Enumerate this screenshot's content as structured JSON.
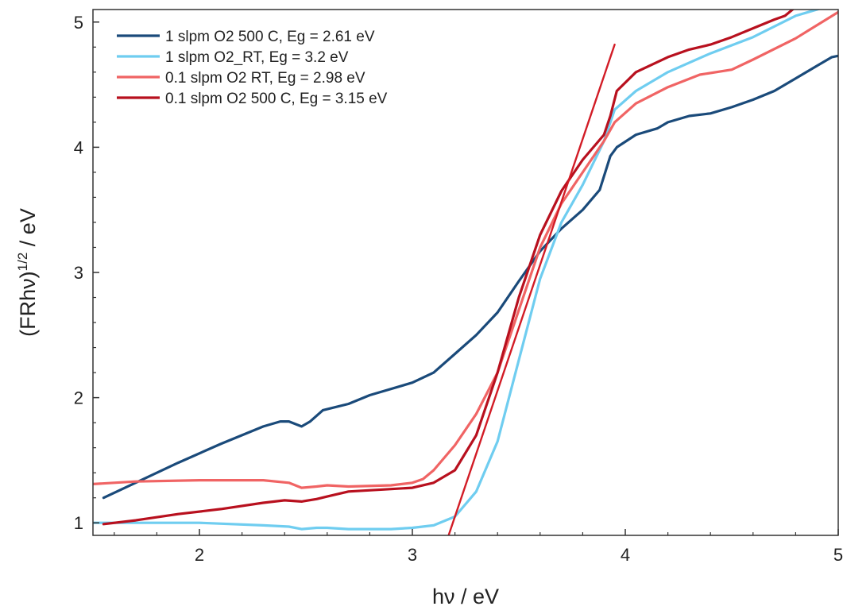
{
  "chart_data": {
    "type": "line",
    "title": "",
    "xlabel": "hν / eV",
    "ylabel": "(FRhν)",
    "ylabel_sup": "1/2",
    "ylabel_suffix": " / eV",
    "xlim": [
      1.5,
      5.0
    ],
    "ylim": [
      0.9,
      5.1
    ],
    "xticks": [
      2,
      3,
      4,
      5
    ],
    "xtick_labels": [
      "2",
      "3",
      "4",
      "5"
    ],
    "yticks": [
      1,
      2,
      3,
      4,
      5
    ],
    "ytick_labels": [
      "1",
      "2",
      "3",
      "4",
      "5"
    ],
    "grid": false,
    "legend_position": "top-left",
    "series": [
      {
        "name": "1 slpm O2 500 C, Eg = 2.61 eV",
        "color": "#1a4a7a",
        "x": [
          1.55,
          1.7,
          1.9,
          2.1,
          2.3,
          2.38,
          2.42,
          2.48,
          2.52,
          2.58,
          2.7,
          2.8,
          3.0,
          3.1,
          3.2,
          3.3,
          3.4,
          3.5,
          3.6,
          3.7,
          3.8,
          3.88,
          3.93,
          3.96,
          4.05,
          4.15,
          4.2,
          4.3,
          4.4,
          4.5,
          4.6,
          4.7,
          4.8,
          4.9,
          4.97,
          5.0
        ],
        "y": [
          1.2,
          1.32,
          1.48,
          1.63,
          1.77,
          1.81,
          1.81,
          1.77,
          1.81,
          1.9,
          1.95,
          2.02,
          2.12,
          2.2,
          2.35,
          2.5,
          2.68,
          2.93,
          3.17,
          3.35,
          3.5,
          3.66,
          3.93,
          4.0,
          4.1,
          4.15,
          4.2,
          4.25,
          4.27,
          4.32,
          4.38,
          4.45,
          4.55,
          4.65,
          4.72,
          4.73
        ]
      },
      {
        "name": "1 slpm O2_RT, Eg = 3.2 eV",
        "color": "#6fcdf0",
        "x": [
          1.5,
          1.7,
          2.0,
          2.3,
          2.42,
          2.48,
          2.55,
          2.6,
          2.7,
          2.9,
          3.0,
          3.1,
          3.2,
          3.3,
          3.4,
          3.5,
          3.6,
          3.7,
          3.8,
          3.9,
          3.95,
          4.05,
          4.2,
          4.4,
          4.6,
          4.8,
          5.0
        ],
        "y": [
          1.0,
          1.0,
          1.0,
          0.98,
          0.97,
          0.95,
          0.96,
          0.96,
          0.95,
          0.95,
          0.96,
          0.98,
          1.05,
          1.25,
          1.65,
          2.3,
          2.95,
          3.4,
          3.7,
          4.05,
          4.3,
          4.45,
          4.6,
          4.75,
          4.88,
          5.05,
          5.15
        ]
      },
      {
        "name": "0.1 slpm O2 RT, Eg = 2.98 eV",
        "color": "#f06464",
        "x": [
          1.5,
          1.7,
          2.0,
          2.3,
          2.42,
          2.48,
          2.55,
          2.6,
          2.7,
          2.9,
          3.0,
          3.05,
          3.1,
          3.2,
          3.3,
          3.4,
          3.5,
          3.6,
          3.7,
          3.8,
          3.9,
          3.95,
          4.05,
          4.2,
          4.35,
          4.5,
          4.6,
          4.8,
          5.0
        ],
        "y": [
          1.31,
          1.33,
          1.34,
          1.34,
          1.32,
          1.28,
          1.29,
          1.3,
          1.29,
          1.3,
          1.32,
          1.35,
          1.42,
          1.62,
          1.87,
          2.2,
          2.7,
          3.2,
          3.55,
          3.8,
          4.05,
          4.2,
          4.35,
          4.48,
          4.58,
          4.62,
          4.7,
          4.87,
          5.08
        ]
      },
      {
        "name": "0.1 slpm O2 500 C, Eg = 3.15 eV",
        "color": "#b8101e",
        "x": [
          1.55,
          1.7,
          1.9,
          2.1,
          2.3,
          2.4,
          2.48,
          2.55,
          2.6,
          2.7,
          2.9,
          3.0,
          3.1,
          3.2,
          3.3,
          3.4,
          3.5,
          3.6,
          3.7,
          3.8,
          3.9,
          3.93,
          3.96,
          4.05,
          4.2,
          4.3,
          4.4,
          4.5,
          4.6,
          4.7,
          4.75,
          4.8
        ],
        "y": [
          0.99,
          1.02,
          1.07,
          1.11,
          1.16,
          1.18,
          1.17,
          1.19,
          1.21,
          1.25,
          1.27,
          1.28,
          1.32,
          1.42,
          1.7,
          2.2,
          2.8,
          3.3,
          3.65,
          3.9,
          4.1,
          4.25,
          4.45,
          4.6,
          4.72,
          4.78,
          4.82,
          4.88,
          4.95,
          5.02,
          5.05,
          5.12
        ]
      },
      {
        "name": "",
        "color": "#d21c26",
        "x": [
          3.17,
          3.95
        ],
        "y": [
          0.9,
          4.82
        ]
      }
    ]
  }
}
